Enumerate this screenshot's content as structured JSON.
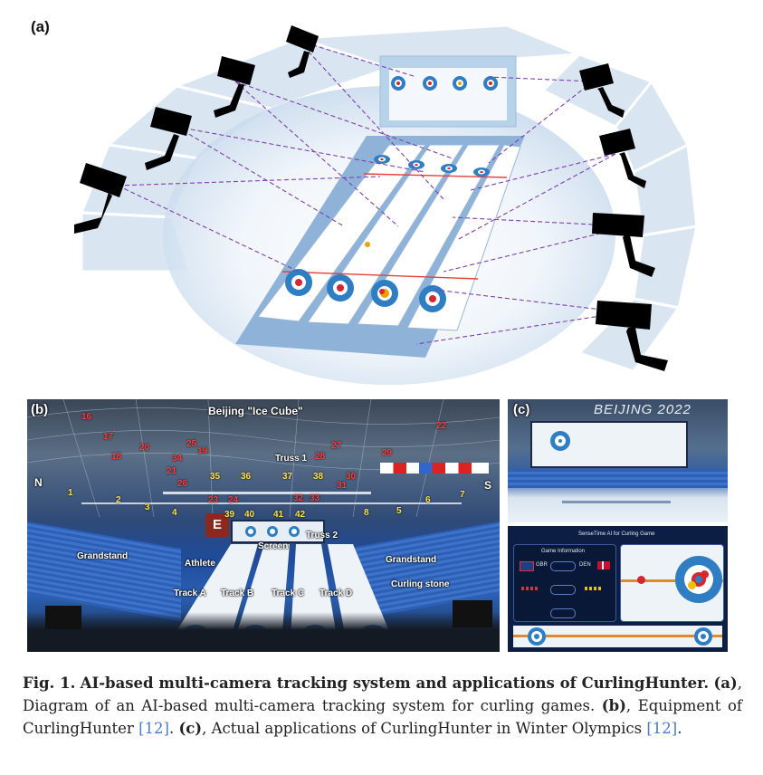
{
  "panels": {
    "a": {
      "label": "(a)"
    },
    "b": {
      "label": "(b)",
      "venue": "Beijing \"Ice Cube\"",
      "compass_n": "N",
      "compass_s": "S",
      "truss1": "Truss 1",
      "truss2": "Truss 2",
      "screen": "Screen",
      "e_marker": "E",
      "grandstand_left": "Grandstand",
      "grandstand_right": "Grandstand",
      "athlete": "Athlete",
      "curling_stone": "Curling stone",
      "tracks": [
        "Track A",
        "Track B",
        "Track C",
        "Track D"
      ],
      "red_numbers": [
        "16",
        "17",
        "18",
        "19",
        "20",
        "21",
        "22",
        "23",
        "24",
        "25",
        "26",
        "27",
        "28",
        "29",
        "30",
        "31",
        "32",
        "33",
        "34"
      ],
      "yellow_numbers": [
        "1",
        "2",
        "3",
        "4",
        "5",
        "6",
        "7",
        "8",
        "9",
        "10",
        "11",
        "12",
        "35",
        "36",
        "37",
        "38",
        "39",
        "40",
        "41",
        "42"
      ]
    },
    "c": {
      "label": "(c)",
      "banner": "BEIJING 2022",
      "app_title": "SenseTime AI for Curling Game",
      "game_info": "Game Information",
      "team_left": "GBR",
      "team_right": "DEN"
    }
  },
  "caption": {
    "fig": "Fig. 1.",
    "title": "AI-based multi-camera tracking system and applications of CurlingHunter.",
    "a_label": "(a)",
    "a_text": ", Diagram of an AI-based multi-camera tracking system for curling games.",
    "b_label": "(b)",
    "b_text": ", Equipment of CurlingHunter",
    "ref1": "[12]",
    "c_label": "(c)",
    "c_text": ", Actual applications of CurlingHunter in Winter Olympics",
    "ref2": "[12]"
  },
  "colors": {
    "accent_blue": "#4a7cc9",
    "camera_line": "#7d3fb0",
    "ice_house_blue": "#2f7ec4",
    "ice_house_red": "#d8262f"
  }
}
